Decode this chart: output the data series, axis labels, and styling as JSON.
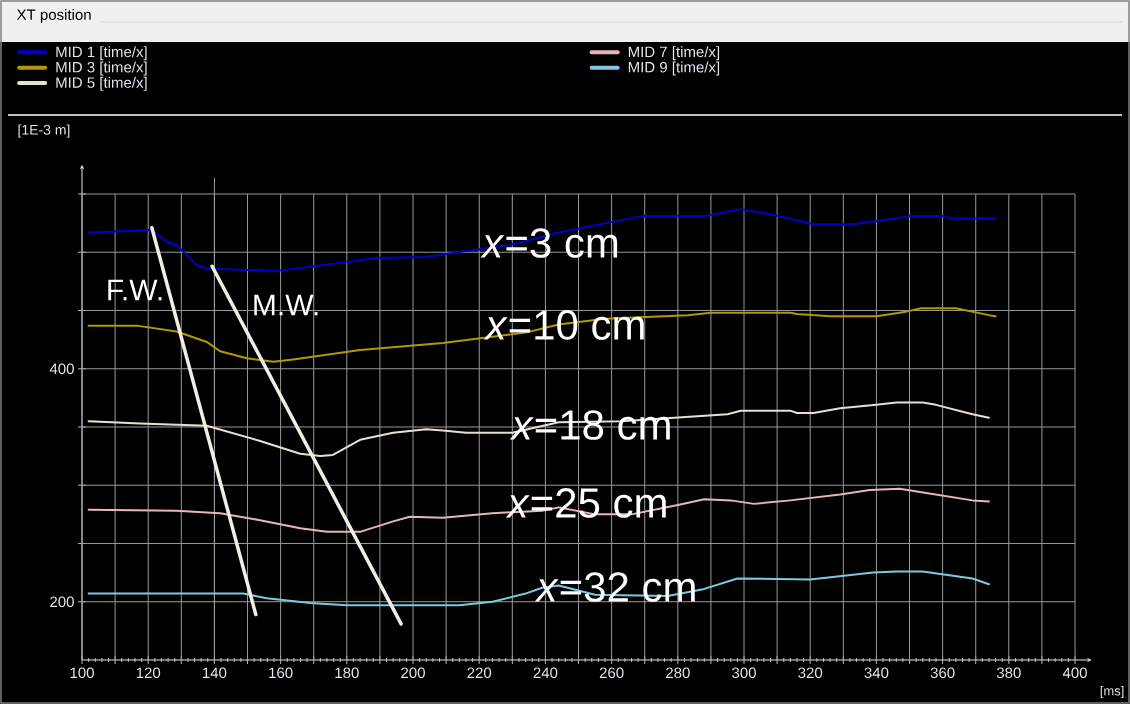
{
  "chart_data": {
    "type": "line",
    "title": "XT position",
    "xlabel": "[ms]",
    "ylabel": "[1E-3 m]",
    "xlim": [
      100,
      405
    ],
    "ylim": [
      150,
      575
    ],
    "xticks": [
      100,
      {
        "value": 110,
        "label": null
      },
      120,
      {
        "value": 130,
        "label": null
      },
      140,
      {
        "value": 150,
        "label": null
      },
      160,
      {
        "value": 170,
        "label": null
      },
      180,
      {
        "value": 190,
        "label": null
      },
      200,
      {
        "value": 210,
        "label": null
      },
      220,
      {
        "value": 230,
        "label": null
      },
      240,
      {
        "value": 250,
        "label": null
      },
      260,
      {
        "value": 270,
        "label": null
      },
      280,
      {
        "value": 290,
        "label": null
      },
      300,
      {
        "value": 310,
        "label": null
      },
      320,
      {
        "value": 330,
        "label": null
      },
      340,
      {
        "value": 350,
        "label": null
      },
      360,
      {
        "value": 370,
        "label": null
      },
      380,
      {
        "value": 390,
        "label": null
      },
      400
    ],
    "yticks": [
      200,
      {
        "value": 250,
        "label": null
      },
      {
        "value": 300,
        "label": null
      },
      {
        "value": 350,
        "label": null
      },
      400,
      {
        "value": 450,
        "label": null
      },
      {
        "value": 500,
        "label": null
      },
      {
        "value": 550,
        "label": null
      }
    ],
    "grid": true,
    "legend": "top",
    "series": [
      {
        "name": "MID 1 [time/x]",
        "color": "#0000cc",
        "x": [
          102,
          121,
          125.6,
          128.6,
          134.7,
          137.7,
          158.8,
          164.9,
          189,
          204,
          216,
          229,
          244,
          269,
          288,
          299,
          309,
          321,
          333,
          350,
          360,
          363,
          376
        ],
        "values": [
          517,
          519,
          509,
          506,
          489,
          486,
          484,
          486,
          495,
          496,
          501,
          506,
          517,
          531,
          531,
          537,
          532,
          524,
          524,
          531,
          531,
          529,
          529
        ]
      },
      {
        "name": "MID 3 [time/x]",
        "color": "#b39800",
        "x": [
          102,
          116.5,
          128.6,
          137.7,
          141.7,
          149.8,
          157.8,
          163.8,
          184,
          209,
          234,
          244,
          258,
          283,
          290,
          314,
          316,
          326,
          340,
          349,
          353.5,
          364,
          374,
          376
        ],
        "values": [
          437,
          437,
          432,
          423,
          415,
          409,
          406,
          408,
          416,
          422,
          431,
          438,
          443,
          446,
          448,
          448,
          447,
          445,
          445,
          449,
          452,
          452,
          446,
          445
        ]
      },
      {
        "name": "MID 5 [time/x]",
        "color": "#e8e0cc",
        "x": [
          102,
          117.5,
          137.7,
          153.8,
          165.9,
          172,
          175.8,
          184,
          194,
          204,
          209,
          216,
          222,
          230,
          244,
          263,
          295,
          299,
          314,
          316,
          321,
          329,
          340,
          346,
          354,
          358,
          369,
          374
        ],
        "values": [
          355,
          353,
          351,
          338,
          327,
          325,
          326,
          339,
          345,
          348,
          347,
          345,
          345,
          345,
          354,
          355,
          361,
          364,
          364,
          362,
          362,
          366,
          369,
          371,
          371,
          369,
          361,
          358
        ]
      },
      {
        "name": "MID 7 [time/x]",
        "color": "#e8b4bc",
        "x": [
          102,
          128.6,
          141.7,
          153.8,
          165.9,
          174,
          184,
          194,
          199,
          209,
          224,
          239,
          244,
          255,
          266,
          280,
          288,
          296,
          303,
          314,
          329,
          338,
          347,
          356,
          369,
          374
        ],
        "values": [
          279,
          278,
          276,
          270,
          263,
          260,
          260,
          269,
          273,
          272,
          276,
          278,
          281,
          275,
          275,
          283,
          288,
          287,
          284,
          287,
          292,
          296,
          297,
          293,
          287,
          286
        ]
      },
      {
        "name": "MID 9 [time/x]",
        "color": "#7ec8e3",
        "x": [
          102,
          148.7,
          155.8,
          168.9,
          180,
          214,
          224,
          234,
          239,
          244,
          255,
          277,
          288,
          298,
          320,
          339,
          346,
          354,
          369,
          374
        ],
        "values": [
          207,
          207,
          203,
          199,
          197,
          197,
          200,
          207,
          212,
          214,
          206,
          205,
          211,
          220,
          219,
          225,
          226,
          226,
          220,
          215
        ]
      },
      {
        "color": "#f2eee2",
        "x": [
          121.1,
          152.5
        ],
        "values": [
          521,
          189
        ]
      },
      {
        "color": "#f2eee2",
        "x": [
          139.3,
          196.4
        ],
        "values": [
          488,
          181
        ]
      }
    ],
    "ref_lines": [
      {
        "axis": "x",
        "value": 140,
        "color": "#a0a0a0"
      }
    ],
    "annotations": [
      "F.W.",
      "M.W.",
      "*x*=3 cm",
      "*x*=10 cm",
      "*x*=18 cm",
      "*x*=25 cm",
      "*x*=32 cm"
    ]
  }
}
